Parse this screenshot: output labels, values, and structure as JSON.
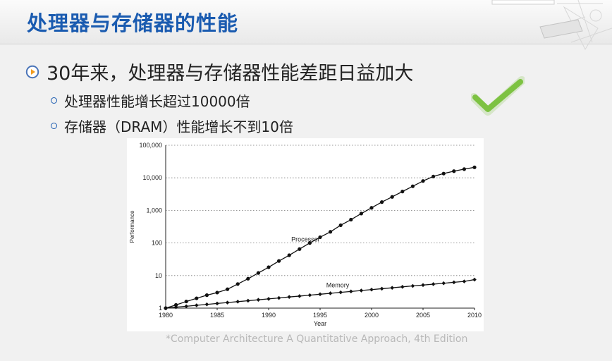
{
  "slide": {
    "title": "处理器与存储器的性能",
    "main_bullet": "30年来，处理器与存储器性能差距日益加大",
    "sub_bullets": [
      "处理器性能增长超过10000倍",
      "存储器（DRAM）性能增长不到10倍"
    ],
    "citation": "*Computer Architecture A Quantitative Approach, 4th Edition"
  },
  "icons": {
    "bullet": "play-circle-icon",
    "check": "checkmark-icon"
  },
  "colors": {
    "title": "#1a5bb0",
    "check": "#7dc242",
    "series": "#111111"
  },
  "chart_data": {
    "type": "line",
    "title": "",
    "xlabel": "Year",
    "ylabel": "Performance",
    "yscale": "log",
    "xlim": [
      1980,
      2010
    ],
    "ylim": [
      1,
      100000
    ],
    "xticks": [
      1980,
      1985,
      1990,
      1995,
      2000,
      2005,
      2010
    ],
    "yticks": [
      1,
      10,
      100,
      1000,
      10000,
      100000
    ],
    "ytick_labels": [
      "1",
      "10",
      "100",
      "1,000",
      "10,000",
      "100,000"
    ],
    "grid": "horizontal-dotted",
    "series": [
      {
        "name": "Processor",
        "marker": "circle",
        "x": [
          1980,
          1981,
          1982,
          1983,
          1984,
          1985,
          1986,
          1987,
          1988,
          1989,
          1990,
          1991,
          1992,
          1993,
          1994,
          1995,
          1996,
          1997,
          1998,
          1999,
          2000,
          2001,
          2002,
          2003,
          2004,
          2005,
          2006,
          2007,
          2008,
          2009,
          2010
        ],
        "values": [
          1,
          1.25,
          1.6,
          2,
          2.5,
          3,
          3.8,
          5.5,
          8,
          12,
          18,
          28,
          42,
          65,
          100,
          150,
          220,
          350,
          520,
          800,
          1200,
          1800,
          2600,
          3800,
          5500,
          8000,
          11000,
          13500,
          16000,
          18500,
          21000
        ]
      },
      {
        "name": "Memory",
        "marker": "diamond",
        "x": [
          1980,
          1981,
          1982,
          1983,
          1984,
          1985,
          1986,
          1987,
          1988,
          1989,
          1990,
          1991,
          1992,
          1993,
          1994,
          1995,
          1996,
          1997,
          1998,
          1999,
          2000,
          2001,
          2002,
          2003,
          2004,
          2005,
          2006,
          2007,
          2008,
          2009,
          2010
        ],
        "values": [
          1,
          1.07,
          1.14,
          1.22,
          1.3,
          1.39,
          1.48,
          1.58,
          1.69,
          1.8,
          1.92,
          2.05,
          2.2,
          2.34,
          2.5,
          2.67,
          2.85,
          3.05,
          3.25,
          3.47,
          3.7,
          3.95,
          4.2,
          4.5,
          4.8,
          5.1,
          5.45,
          5.8,
          6.2,
          6.6,
          7.5
        ]
      }
    ]
  }
}
